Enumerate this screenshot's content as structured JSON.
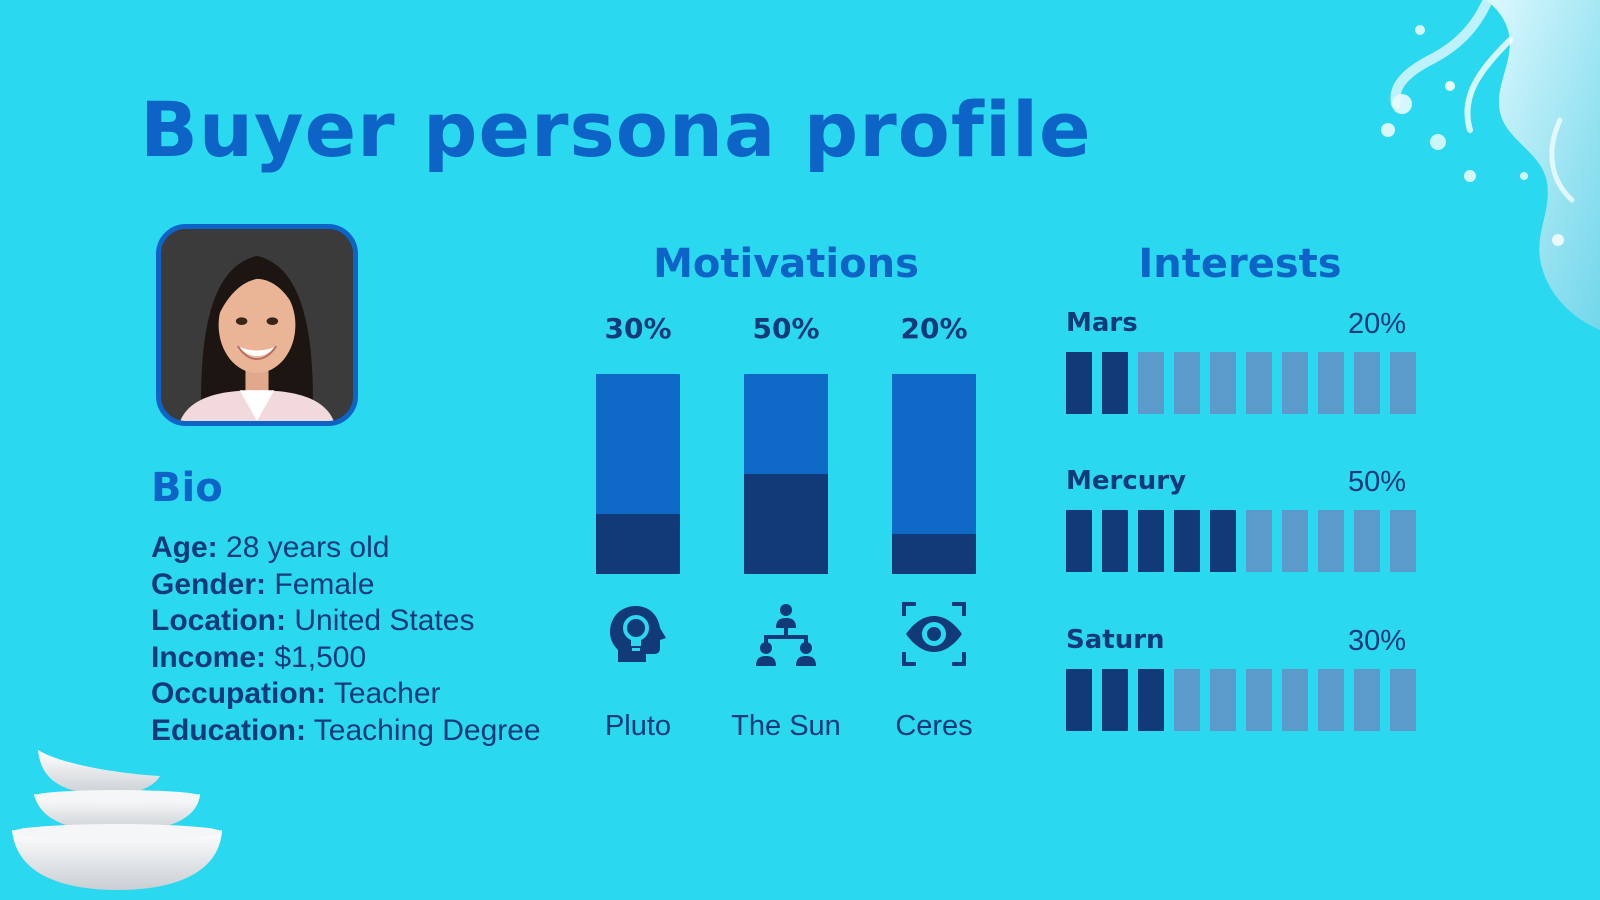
{
  "title": "Buyer persona profile",
  "bio": {
    "heading": "Bio",
    "items": [
      {
        "label": "Age:",
        "value": "28 years old"
      },
      {
        "label": "Gender:",
        "value": "Female"
      },
      {
        "label": "Location:",
        "value": "United States"
      },
      {
        "label": "Income:",
        "value": "$1,500"
      },
      {
        "label": "Occupation:",
        "value": "Teacher"
      },
      {
        "label": "Education:",
        "value": "Teaching Degree"
      }
    ]
  },
  "motivations": {
    "heading": "Motivations",
    "items": [
      {
        "label": "Pluto",
        "percent_text": "30%",
        "value": 30,
        "icon": "head-lightbulb-icon"
      },
      {
        "label": "The Sun",
        "percent_text": "50%",
        "value": 50,
        "icon": "hierarchy-people-icon"
      },
      {
        "label": "Ceres",
        "percent_text": "20%",
        "value": 20,
        "icon": "eye-scan-icon"
      }
    ]
  },
  "interests": {
    "heading": "Interests",
    "total_cells": 10,
    "items": [
      {
        "name": "Mars",
        "percent_text": "20%",
        "value": 20
      },
      {
        "name": "Mercury",
        "percent_text": "50%",
        "value": 50
      },
      {
        "name": "Saturn",
        "percent_text": "30%",
        "value": 30
      }
    ]
  },
  "colors": {
    "background": "#2ad8ef",
    "heading": "#0e63c6",
    "dark": "#123a78",
    "bar_light": "#0e6ac6",
    "cell_off": "#5a9bcc"
  }
}
